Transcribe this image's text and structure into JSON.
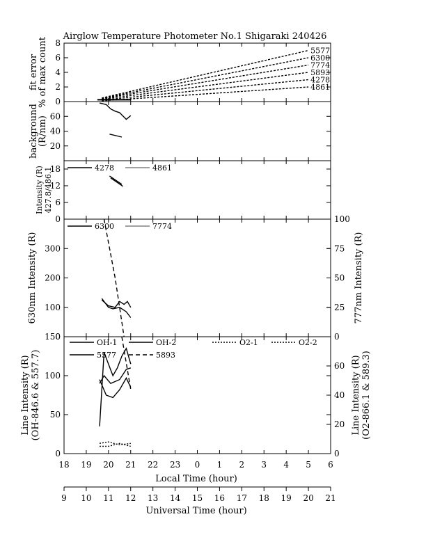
{
  "title": "Airglow Temperature Photometer No.1  Shigaraki  240426",
  "chart_data": [
    {
      "id": "fit-error",
      "type": "line",
      "ylabel_lines": [
        "fit error",
        "% of max count"
      ],
      "ylim": [
        0,
        8
      ],
      "yticks": [
        "0",
        "2",
        "4",
        "6",
        "8"
      ],
      "series": [
        {
          "name": "5577",
          "points": [
            [
              19.7,
              0.5
            ],
            [
              29,
              7.0
            ]
          ]
        },
        {
          "name": "6300",
          "points": [
            [
              19.7,
              0.45
            ],
            [
              29,
              6.0
            ]
          ]
        },
        {
          "name": "7774",
          "points": [
            [
              19.7,
              0.4
            ],
            [
              29,
              5.0
            ]
          ]
        },
        {
          "name": "5893",
          "points": [
            [
              19.7,
              0.3
            ],
            [
              29,
              4.0
            ]
          ]
        },
        {
          "name": "4278",
          "points": [
            [
              19.7,
              0.2
            ],
            [
              29,
              3.0
            ]
          ]
        },
        {
          "name": "4861",
          "points": [
            [
              19.7,
              0.1
            ],
            [
              29,
              2.0
            ]
          ]
        }
      ],
      "solid_band": {
        "x": [
          19.5,
          21.0
        ],
        "y": [
          0.15,
          0.35
        ]
      }
    },
    {
      "id": "background",
      "type": "line",
      "ylabel_lines": [
        "background",
        "(R/nm)"
      ],
      "ylim": [
        0,
        80
      ],
      "yticks": [
        "20",
        "40",
        "60"
      ],
      "series": [
        {
          "name": "",
          "points": [
            [
              19.6,
              78
            ],
            [
              19.9,
              76
            ],
            [
              20.1,
              70
            ],
            [
              20.3,
              67
            ],
            [
              20.5,
              65
            ],
            [
              20.8,
              56
            ],
            [
              21.0,
              61
            ]
          ]
        },
        {
          "name": "",
          "points": [
            [
              20.05,
              36
            ],
            [
              20.6,
              32
            ]
          ]
        }
      ]
    },
    {
      "id": "intensity-4278-4861",
      "type": "line",
      "ylabel_lines": [
        "Intensity (R)",
        "427.8/486.1"
      ],
      "ylim": [
        0,
        21
      ],
      "yticks": [
        "0",
        "6",
        "12",
        "18"
      ],
      "legend": [
        "4278",
        "4861"
      ],
      "series": [
        {
          "name": "4278",
          "points": [
            [
              20.05,
              15.5
            ],
            [
              20.6,
              12.5
            ]
          ]
        },
        {
          "name": "4861",
          "points": [
            [
              20.1,
              14.8
            ],
            [
              20.65,
              11.8
            ]
          ]
        }
      ]
    },
    {
      "id": "630-777",
      "type": "line",
      "ylabel_left": "630nm Intensity (R)",
      "ylabel_right": "777nm Intensity (R)",
      "ylim_left": [
        0,
        400
      ],
      "ylim_right": [
        0,
        100
      ],
      "yticks_left": [
        "0",
        "100",
        "200",
        "300"
      ],
      "yticks_right": [
        "0",
        "25",
        "50",
        "75",
        "100"
      ],
      "legend": [
        "6300",
        "7774"
      ],
      "series": [
        {
          "name": "6300",
          "axis": "left",
          "points": [
            [
              19.7,
              130
            ],
            [
              20.0,
              100
            ],
            [
              20.2,
              95
            ],
            [
              20.5,
              100
            ],
            [
              20.8,
              85
            ],
            [
              21.0,
              65
            ]
          ]
        },
        {
          "name": "7774",
          "axis": "left",
          "points": [
            [
              19.7,
              125
            ],
            [
              20.0,
              105
            ],
            [
              20.3,
              100
            ],
            [
              20.5,
              120
            ],
            [
              20.7,
              110
            ],
            [
              20.85,
              120
            ],
            [
              21.0,
              100
            ]
          ]
        },
        {
          "name": "",
          "axis": "right",
          "dashed": true,
          "points": [
            [
              19.8,
              100
            ],
            [
              20.3,
              50
            ],
            [
              20.7,
              0
            ]
          ]
        }
      ]
    },
    {
      "id": "line-intensity",
      "type": "line",
      "ylabel_left_lines": [
        "Line Intensity (R)",
        "(OH-846.6 & 557.7)"
      ],
      "ylabel_right_lines": [
        "Line Intensity (R)",
        "(O2-866.1 & 589.3)"
      ],
      "ylim_left": [
        0,
        150
      ],
      "ylim_right": [
        0,
        80
      ],
      "yticks_left": [
        "0",
        "50",
        "100",
        "150"
      ],
      "yticks_right": [
        "0",
        "20",
        "40",
        "60"
      ],
      "legend": [
        "OH-1",
        "OH-2",
        "O2-1",
        "O2-2",
        "5577",
        "5893"
      ],
      "series": [
        {
          "name": "OH-1",
          "axis": "left",
          "points": [
            [
              19.6,
              95
            ],
            [
              19.9,
              75
            ],
            [
              20.2,
              72
            ],
            [
              20.5,
              82
            ],
            [
              20.8,
              97
            ],
            [
              21.0,
              85
            ]
          ]
        },
        {
          "name": "OH-2",
          "axis": "left",
          "points": [
            [
              19.6,
              90
            ],
            [
              19.8,
              100
            ],
            [
              20.1,
              90
            ],
            [
              20.5,
              95
            ],
            [
              20.8,
              108
            ],
            [
              21.0,
              110
            ]
          ]
        },
        {
          "name": "5577",
          "axis": "left",
          "points": [
            [
              19.6,
              35
            ],
            [
              19.8,
              130
            ],
            [
              20.0,
              115
            ],
            [
              20.2,
              100
            ],
            [
              20.4,
              110
            ],
            [
              20.6,
              125
            ],
            [
              20.8,
              135
            ],
            [
              21.0,
              115
            ]
          ]
        },
        {
          "name": "O2-1",
          "axis": "right",
          "dashed": true,
          "points": [
            [
              19.6,
              7
            ],
            [
              20.0,
              8
            ],
            [
              20.5,
              6
            ],
            [
              21.0,
              7
            ]
          ]
        },
        {
          "name": "O2-2",
          "axis": "right",
          "dashed": true,
          "points": [
            [
              19.6,
              5
            ],
            [
              20.0,
              5
            ],
            [
              20.5,
              7
            ],
            [
              21.0,
              5
            ]
          ]
        },
        {
          "name": "5893",
          "axis": "right",
          "dashed": true,
          "points": [
            [
              20.6,
              80
            ],
            [
              21.0,
              44
            ]
          ]
        }
      ]
    }
  ],
  "x_axis": {
    "label": "Local Time (hour)",
    "xlim": [
      18,
      30
    ],
    "ticks": [
      "18",
      "19",
      "20",
      "21",
      "22",
      "23",
      "0",
      "1",
      "2",
      "3",
      "4",
      "5",
      "6"
    ]
  },
  "ut_axis": {
    "label": "Universal Time (hour)",
    "ticks": [
      "9",
      "10",
      "11",
      "12",
      "13",
      "14",
      "15",
      "16",
      "17",
      "18",
      "19",
      "20",
      "21"
    ]
  }
}
